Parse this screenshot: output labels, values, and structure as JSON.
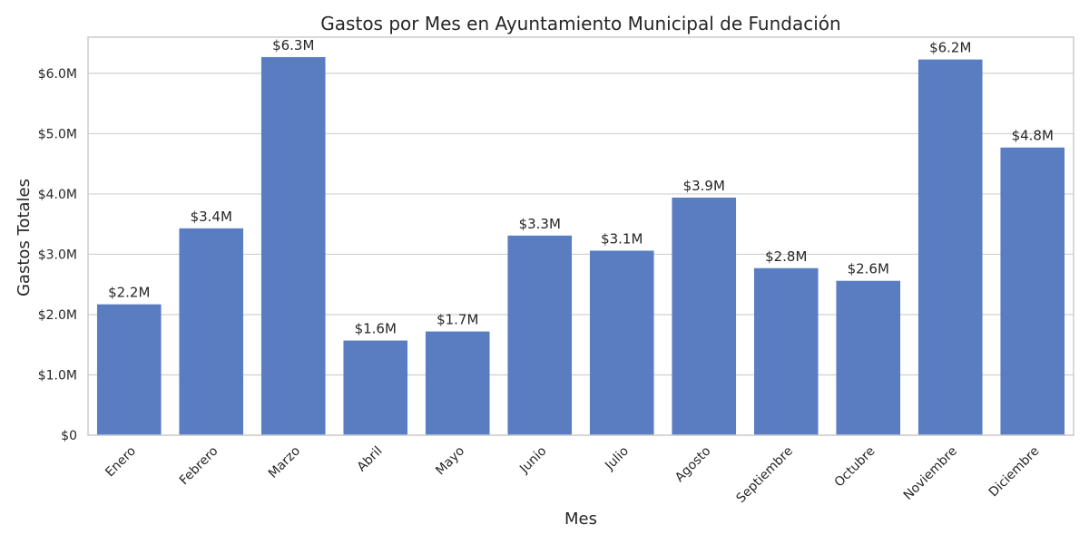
{
  "chart_data": {
    "type": "bar",
    "title": "Gastos por Mes en Ayuntamiento Municipal de Fundación",
    "xlabel": "Mes",
    "ylabel": "Gastos Totales",
    "categories": [
      "Enero",
      "Febrero",
      "Marzo",
      "Abril",
      "Mayo",
      "Junio",
      "Julio",
      "Agosto",
      "Septiembre",
      "Octubre",
      "Noviembre",
      "Diciembre"
    ],
    "values": [
      2170000,
      3430000,
      6270000,
      1570000,
      1720000,
      3310000,
      3060000,
      3940000,
      2770000,
      2560000,
      6230000,
      4770000
    ],
    "data_labels": [
      "$2.2M",
      "$3.4M",
      "$6.3M",
      "$1.6M",
      "$1.7M",
      "$3.3M",
      "$3.1M",
      "$3.9M",
      "$2.8M",
      "$2.6M",
      "$6.2M",
      "$4.8M"
    ],
    "yticks": [
      0,
      1000000,
      2000000,
      3000000,
      4000000,
      5000000,
      6000000
    ],
    "ytick_labels": [
      "$0",
      "$1.0M",
      "$2.0M",
      "$3.0M",
      "$4.0M",
      "$5.0M",
      "$6.0M"
    ],
    "ylim": [
      0,
      6600000
    ],
    "grid": true,
    "bar_color": "#5a7dc2",
    "grid_color": "#d0d0d0",
    "frame_color": "#cccccc"
  }
}
